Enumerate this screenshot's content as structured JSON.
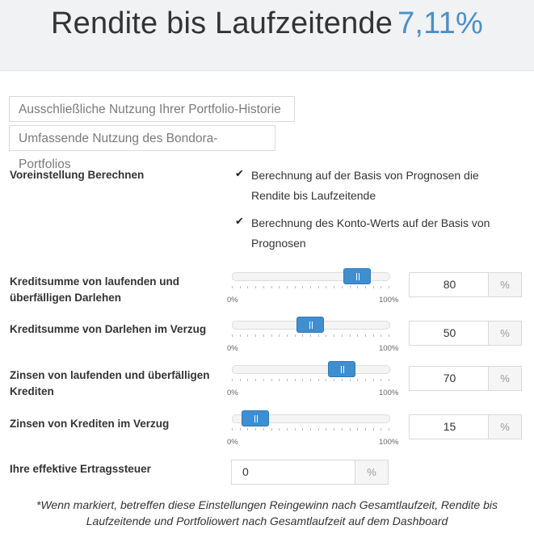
{
  "header": {
    "title": "Rendite bis Laufzeitende",
    "value": "7,11%"
  },
  "modes": [
    "Ausschließliche Nutzung Ihrer Portfolio-Historie",
    "Umfassende Nutzung des Bondora-Portfolios"
  ],
  "preset": {
    "label": "Voreinstellung Berechnen",
    "options": [
      {
        "line1": "Berechnung auf der Basis von Prognosen die",
        "line2": "Rendite bis Laufzeitende",
        "checked": true
      },
      {
        "line1": "Berechnung des Konto-Werts auf der Basis von",
        "line2": "Prognosen",
        "checked": true
      }
    ],
    "check_glyph": "✔"
  },
  "sliders": [
    {
      "label1": "Kreditsumme von laufenden und",
      "label2": "überfälligen Darlehen",
      "value": "80",
      "percent": 80
    },
    {
      "label1": "Kreditsumme von Darlehen im Verzug",
      "label2": "",
      "value": "50",
      "percent": 50
    },
    {
      "label1": "Zinsen von laufenden und überfälligen",
      "label2": "Krediten",
      "value": "70",
      "percent": 70
    },
    {
      "label1": "Zinsen von Krediten im Verzug",
      "label2": "",
      "value": "15",
      "percent": 15
    }
  ],
  "slider_min": "0%",
  "slider_max": "100%",
  "unit": "%",
  "tax": {
    "label": "Ihre effektive Ertragssteuer",
    "value": "0",
    "unit": "%"
  },
  "footnote": {
    "line1": "*Wenn markiert, betreffen diese Einstellungen Reingewinn nach Gesamtlaufzeit, Rendite bis",
    "line2": "Laufzeitende und Portfoliowert nach Gesamtlaufzeit auf dem Dashboard"
  },
  "colors": {
    "accent": "#4a90c6",
    "handle": "#3f8fd0"
  }
}
